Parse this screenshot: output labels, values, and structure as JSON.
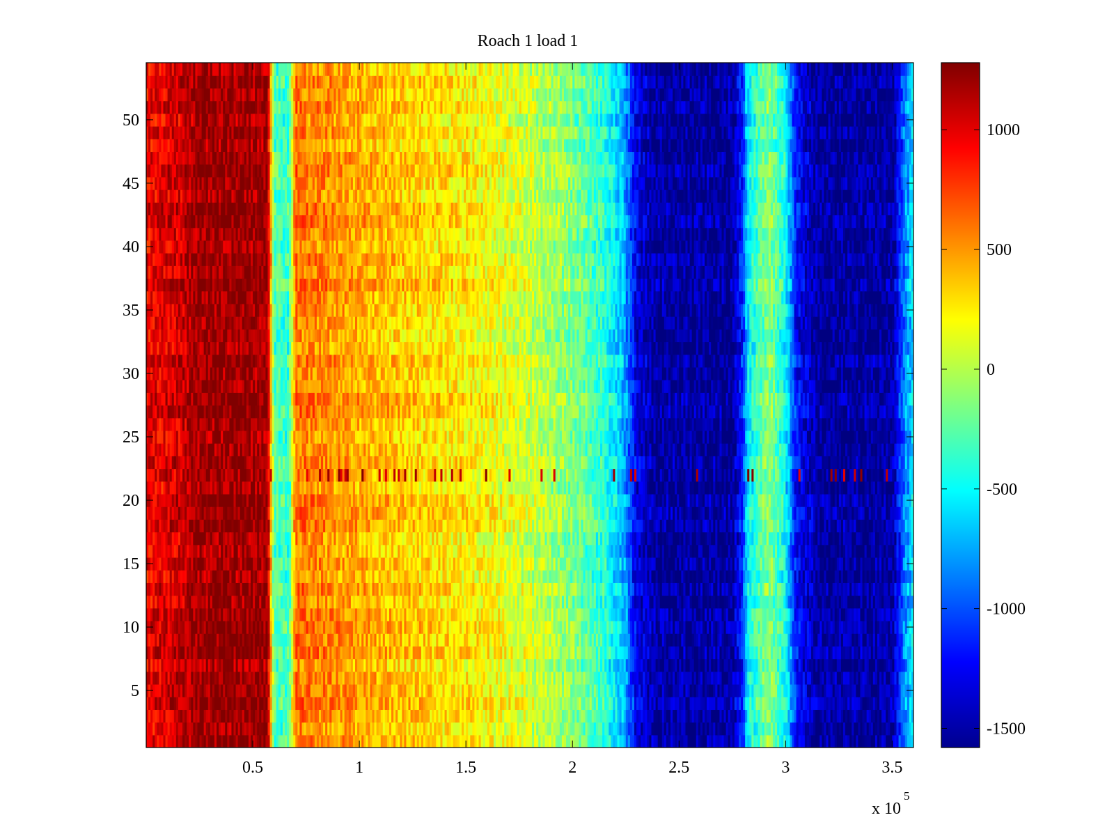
{
  "chart_data": {
    "type": "heatmap",
    "title": "Roach 1 load 1",
    "xlabel": "",
    "ylabel": "",
    "x_exponent_label": "x 10",
    "x_exponent_power": "5",
    "xlim": [
      0,
      360000
    ],
    "ylim": [
      0.5,
      54.5
    ],
    "x_ticks": [
      50000,
      100000,
      150000,
      200000,
      250000,
      300000,
      350000
    ],
    "x_tick_labels": [
      "0.5",
      "1",
      "1.5",
      "2",
      "2.5",
      "3",
      "3.5"
    ],
    "y_ticks": [
      5,
      10,
      15,
      20,
      25,
      30,
      35,
      40,
      45,
      50
    ],
    "y_tick_labels": [
      "5",
      "10",
      "15",
      "20",
      "25",
      "30",
      "35",
      "40",
      "45",
      "50"
    ],
    "rows": 54,
    "colormap": "jet",
    "clim": [
      -1580,
      1280
    ],
    "colorbar_ticks": [
      1000,
      500,
      0,
      -500,
      -1000,
      -1500
    ],
    "colorbar_tick_labels": [
      "1000",
      "500",
      "0",
      "-500",
      "-1000",
      "-1500"
    ],
    "column_profile": [
      {
        "x": 0,
        "value": 950
      },
      {
        "x": 15000,
        "value": 1050
      },
      {
        "x": 25000,
        "value": 1200
      },
      {
        "x": 57000,
        "value": 1200
      },
      {
        "x": 60000,
        "value": -300
      },
      {
        "x": 67000,
        "value": -350
      },
      {
        "x": 70000,
        "value": 600
      },
      {
        "x": 90000,
        "value": 500
      },
      {
        "x": 120000,
        "value": 350
      },
      {
        "x": 150000,
        "value": 250
      },
      {
        "x": 175000,
        "value": 100
      },
      {
        "x": 200000,
        "value": -150
      },
      {
        "x": 215000,
        "value": -400
      },
      {
        "x": 224000,
        "value": -700
      },
      {
        "x": 230000,
        "value": -1300
      },
      {
        "x": 240000,
        "value": -1500
      },
      {
        "x": 275000,
        "value": -1500
      },
      {
        "x": 280000,
        "value": -1100
      },
      {
        "x": 282000,
        "value": -550
      },
      {
        "x": 292000,
        "value": -100
      },
      {
        "x": 300000,
        "value": -500
      },
      {
        "x": 305000,
        "value": -1200
      },
      {
        "x": 315000,
        "value": -1500
      },
      {
        "x": 350000,
        "value": -1500
      },
      {
        "x": 356000,
        "value": -850
      },
      {
        "x": 360000,
        "value": -600
      }
    ],
    "noisy_row": 22
  }
}
